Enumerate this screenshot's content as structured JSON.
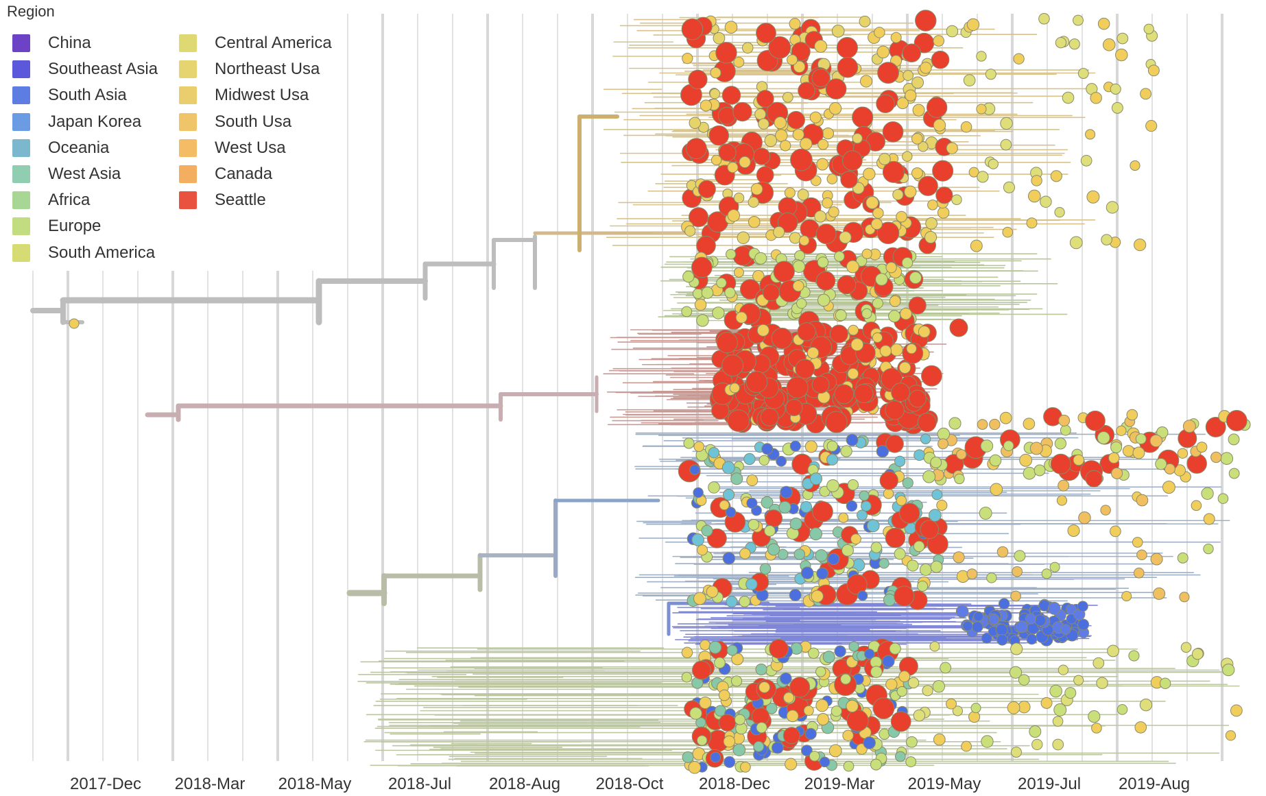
{
  "legend": {
    "title": "Region",
    "items": [
      {
        "label": "China",
        "color": "#5e2fc0"
      },
      {
        "label": "Southeast Asia",
        "color": "#4a46d8"
      },
      {
        "label": "South Asia",
        "color": "#4c6fe0"
      },
      {
        "label": "Japan Korea",
        "color": "#5c92e0"
      },
      {
        "label": "Oceania",
        "color": "#6db0c8"
      },
      {
        "label": "West Asia",
        "color": "#86c8a8"
      },
      {
        "label": "Africa",
        "color": "#9ed28a"
      },
      {
        "label": "Europe",
        "color": "#bcda72"
      },
      {
        "label": "South America",
        "color": "#d2d866"
      },
      {
        "label": "Central America",
        "color": "#dcd566"
      },
      {
        "label": "Northeast Usa",
        "color": "#e4d062"
      },
      {
        "label": "Midwest Usa",
        "color": "#e8c85e"
      },
      {
        "label": "South Usa",
        "color": "#efbf5a"
      },
      {
        "label": "West Usa",
        "color": "#f4b556"
      },
      {
        "label": "Canada",
        "color": "#f2a64e"
      },
      {
        "label": "Seattle",
        "color": "#e8402c"
      }
    ]
  },
  "axis": {
    "ticks": [
      "2017-Dec",
      "2018-Mar",
      "2018-May",
      "2018-Jul",
      "2018-Aug",
      "2018-Oct",
      "2018-Dec",
      "2019-Mar",
      "2019-May",
      "2019-Jul",
      "2019-Aug"
    ]
  },
  "colors": {
    "backbone": "#bdbdbd",
    "grid": "#d8d8d8",
    "seattle": "#e8402c",
    "usa": "#f1ce5c",
    "europe": "#c9e07a",
    "asia_blue": "#4c6fe0",
    "oceania": "#6fc3d6"
  }
}
